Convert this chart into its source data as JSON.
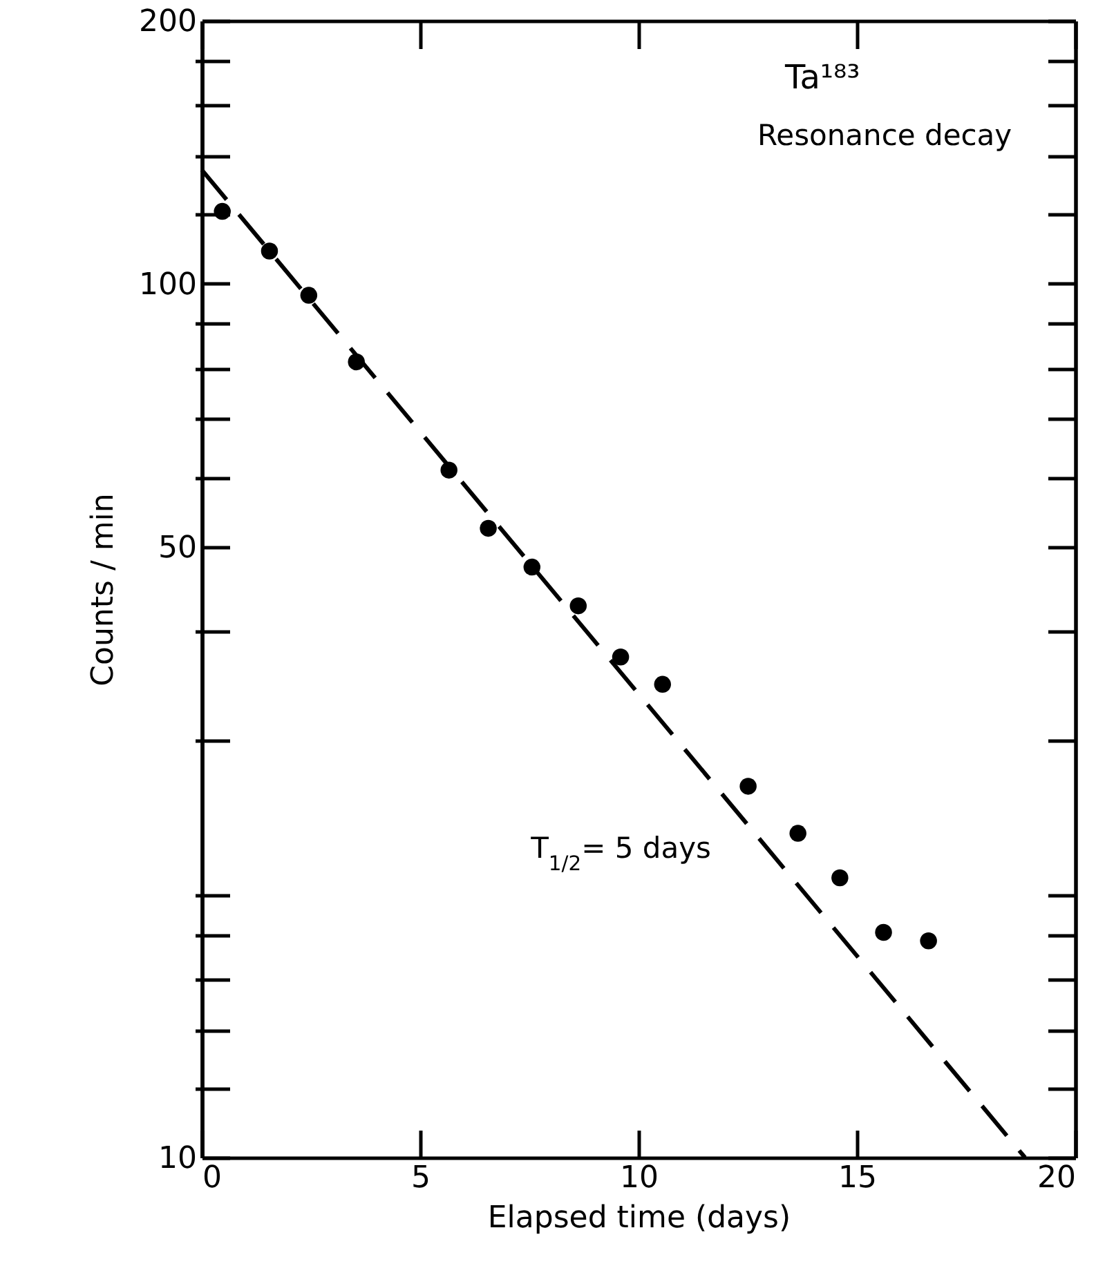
{
  "chart_data": {
    "type": "scatter",
    "xlabel": "Elapsed time (days)",
    "ylabel": "Counts / min",
    "xlim": [
      0,
      20
    ],
    "xticks": [
      0,
      5,
      10,
      15,
      20
    ],
    "ylim": [
      10,
      200
    ],
    "log": "y",
    "yticks": [
      10,
      {
        "value": 12,
        "label": null
      },
      {
        "value": 14,
        "label": null
      },
      {
        "value": 16,
        "label": null
      },
      {
        "value": 18,
        "label": null
      },
      {
        "value": 20,
        "label": null
      },
      {
        "value": 30,
        "label": null
      },
      {
        "value": 40,
        "label": null
      },
      50,
      {
        "value": 60,
        "label": null
      },
      {
        "value": 70,
        "label": null
      },
      {
        "value": 80,
        "label": null
      },
      {
        "value": 90,
        "label": null
      },
      100,
      {
        "value": 120,
        "label": null
      },
      {
        "value": 140,
        "label": null
      },
      {
        "value": 160,
        "label": null
      },
      {
        "value": 180,
        "label": null
      },
      200
    ],
    "grid": false,
    "series": [
      {
        "type": "scatter",
        "marker": "circle",
        "color": "#000000",
        "x": [
          0.47,
          1.55,
          2.45,
          3.54,
          5.66,
          6.56,
          7.56,
          8.62,
          9.59,
          10.55,
          12.51,
          13.65,
          14.61,
          15.61,
          16.64
        ],
        "values": [
          121,
          109,
          97,
          81.4,
          61.2,
          52.5,
          47.4,
          42.8,
          37.4,
          34.8,
          26.6,
          23.5,
          20.9,
          18.1,
          17.7
        ]
      },
      {
        "type": "line",
        "color": "#000000",
        "line_style": "dashed",
        "x": [
          0,
          18.85
        ],
        "values": [
          135,
          10
        ]
      }
    ],
    "annotations": [
      "Ta¹⁸³",
      "Resonance decay",
      {
        "text": "T$_{1/2}$= 5 days",
        "x": 13.4,
        "y": 21.1
      }
    ]
  }
}
